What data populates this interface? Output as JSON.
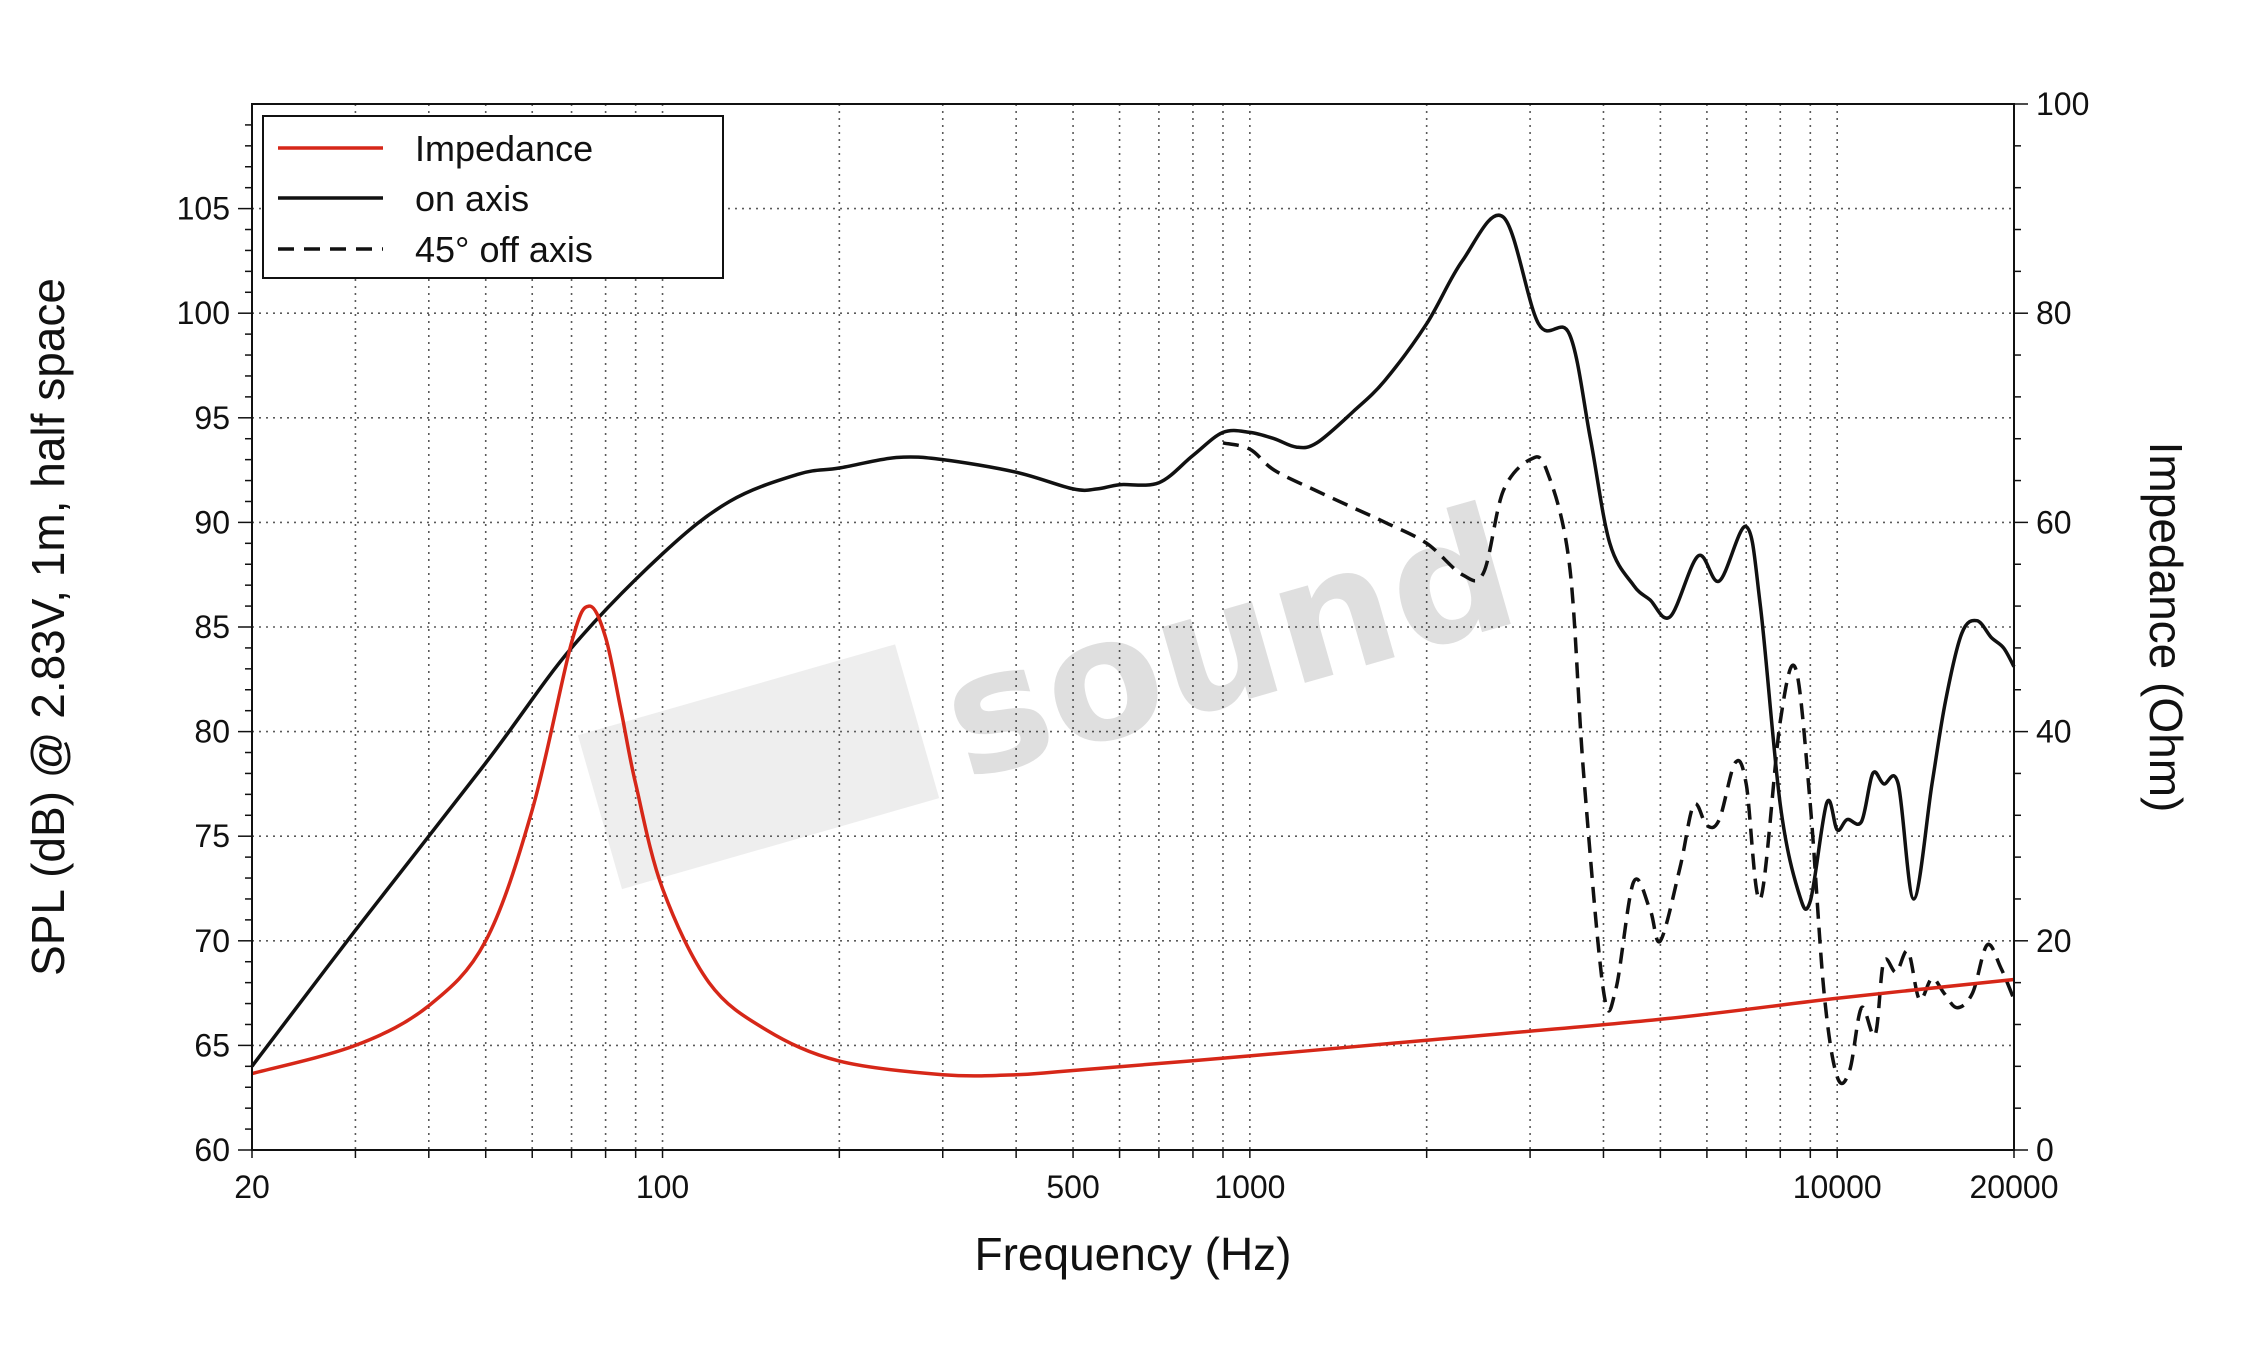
{
  "chart_data": {
    "type": "line",
    "xlabel": "Frequency (Hz)",
    "ylabel_left": "SPL (dB) @ 2.83V, 1m, half space",
    "ylabel_right": "Impedance (Ohm)",
    "x_scale": "log",
    "xlim": [
      20,
      20000
    ],
    "ylim_left": [
      60,
      110
    ],
    "ylim_right": [
      0,
      100
    ],
    "x_tick_labels": [
      "20",
      "100",
      "500",
      "1000",
      "10000",
      "20000"
    ],
    "y_left_tick_labels": [
      "60",
      "65",
      "70",
      "75",
      "80",
      "85",
      "90",
      "95",
      "100",
      "105"
    ],
    "y_right_tick_labels": [
      "0",
      "20",
      "40",
      "60",
      "80",
      "100"
    ],
    "grid": true,
    "legend_position": "top-left",
    "watermark": "sound",
    "series": [
      {
        "name": "Impedance",
        "axis": "right",
        "color": "#d62718",
        "dash": "solid",
        "x": [
          20,
          30,
          40,
          50,
          60,
          70,
          75,
          80,
          85,
          90,
          100,
          120,
          150,
          200,
          300,
          400,
          500,
          1000,
          2000,
          5000,
          10000,
          20000
        ],
        "y": [
          7.3,
          10.0,
          13.8,
          20.0,
          32.5,
          48.5,
          52.0,
          49.0,
          42.0,
          35.0,
          25.0,
          16.0,
          11.5,
          8.5,
          7.2,
          7.2,
          7.6,
          9.0,
          10.5,
          12.5,
          14.5,
          16.3
        ]
      },
      {
        "name": "on axis",
        "axis": "left",
        "color": "#111111",
        "dash": "solid",
        "x": [
          20,
          30,
          50,
          70,
          100,
          130,
          170,
          200,
          250,
          300,
          400,
          500,
          550,
          600,
          700,
          800,
          900,
          1000,
          1100,
          1200,
          1300,
          1500,
          1700,
          2000,
          2300,
          2700,
          3100,
          3500,
          3800,
          4100,
          4500,
          4800,
          5200,
          5800,
          6300,
          7000,
          7400,
          8000,
          8600,
          9000,
          9600,
          10000,
          10400,
          11000,
          11500,
          12000,
          12700,
          13500,
          14500,
          15300,
          16300,
          17300,
          18300,
          19200,
          20000
        ],
        "y": [
          64.0,
          70.5,
          78.5,
          84.0,
          88.5,
          91.0,
          92.3,
          92.6,
          93.1,
          93.0,
          92.4,
          91.6,
          91.6,
          91.8,
          91.9,
          93.2,
          94.3,
          94.3,
          94.0,
          93.6,
          93.8,
          95.3,
          96.8,
          99.5,
          102.5,
          104.6,
          99.5,
          99.0,
          94.0,
          89.0,
          87.0,
          86.3,
          85.5,
          88.4,
          87.2,
          89.8,
          86.0,
          76.5,
          72.3,
          71.9,
          76.6,
          75.3,
          75.8,
          75.7,
          78.0,
          77.5,
          77.5,
          72.0,
          77.5,
          81.5,
          84.7,
          85.3,
          84.5,
          84.0,
          83.1
        ]
      },
      {
        "name": "45° off axis",
        "axis": "left",
        "color": "#111111",
        "dash": "dashed",
        "x": [
          900,
          1000,
          1100,
          1300,
          1500,
          1700,
          2000,
          2300,
          2500,
          2700,
          3000,
          3200,
          3500,
          3700,
          4000,
          4200,
          4500,
          4800,
          5000,
          5400,
          5700,
          6000,
          6300,
          6700,
          7000,
          7400,
          8000,
          8500,
          9000,
          9500,
          10000,
          10500,
          11000,
          11600,
          12000,
          12600,
          13200,
          13800,
          14500,
          15200,
          16000,
          17000,
          18000,
          19000,
          20000
        ],
        "y": [
          93.8,
          93.5,
          92.5,
          91.5,
          90.7,
          90.0,
          89.0,
          87.5,
          87.6,
          91.5,
          93.0,
          92.5,
          88.0,
          78.0,
          67.6,
          67.7,
          72.8,
          71.5,
          70.0,
          73.5,
          76.5,
          75.5,
          75.8,
          78.5,
          77.5,
          72.0,
          80.5,
          83.0,
          76.5,
          67.5,
          63.5,
          63.8,
          66.8,
          65.5,
          69.0,
          68.5,
          69.5,
          67.2,
          68.2,
          67.5,
          66.8,
          67.5,
          69.8,
          68.7,
          67.2
        ]
      }
    ]
  }
}
